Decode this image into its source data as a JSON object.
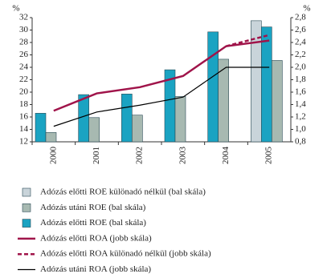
{
  "chart_data": {
    "type": "bar",
    "ylabel": "%",
    "y2label": "%",
    "categories": [
      "2000",
      "2001",
      "2002",
      "2003",
      "2004",
      "2005"
    ],
    "ylim": [
      12,
      32
    ],
    "yticks": [
      12,
      14,
      16,
      18,
      20,
      22,
      24,
      26,
      28,
      30,
      32
    ],
    "y2lim": [
      0.8,
      2.8
    ],
    "y2ticks": [
      {
        "value": 0.8,
        "label": "0,8"
      },
      {
        "value": 1.0,
        "label": "1,0"
      },
      {
        "value": 1.2,
        "label": "1,2"
      },
      {
        "value": 1.4,
        "label": "1,4"
      },
      {
        "value": 1.6,
        "label": "1,6"
      },
      {
        "value": 1.8,
        "label": "1,8"
      },
      {
        "value": 2.0,
        "label": "2,0"
      },
      {
        "value": 2.2,
        "label": "2,2"
      },
      {
        "value": 2.4,
        "label": "2,4"
      },
      {
        "value": 2.6,
        "label": "2,6"
      },
      {
        "value": 2.8,
        "label": "2,8"
      }
    ],
    "series": [
      {
        "name": "Adózás előtti ROE különadó nélkül (bal skála)",
        "color": "#c9d4da",
        "values": [
          null,
          null,
          null,
          null,
          null,
          31.5
        ]
      },
      {
        "name": "Adózás utáni ROE (bal skála)",
        "color": "#a7b9b1",
        "values": [
          13.5,
          15.9,
          16.3,
          19.3,
          25.3,
          25.1
        ]
      },
      {
        "name": "Adózás előtti ROE (bal skála)",
        "color": "#1aa3c2",
        "values": [
          16.6,
          19.6,
          19.7,
          23.6,
          29.7,
          30.5
        ]
      },
      {
        "name": "Adózás előtti ROA (jobb skála)",
        "color": "#a0144a",
        "axis": "y2",
        "values": [
          1.3,
          1.58,
          1.68,
          1.86,
          2.34,
          2.43
        ]
      },
      {
        "name": "Adózás előtti ROA különadó nélkül (jobb skála)",
        "color": "#a0144a",
        "axis": "y2",
        "dashed": true,
        "values": [
          null,
          null,
          null,
          null,
          2.34,
          2.52
        ]
      },
      {
        "name": "Adózás utáni ROA (jobb skála)",
        "color": "#000000",
        "axis": "y2",
        "values": [
          1.05,
          1.28,
          1.39,
          1.52,
          2.0,
          2.0
        ]
      }
    ]
  }
}
